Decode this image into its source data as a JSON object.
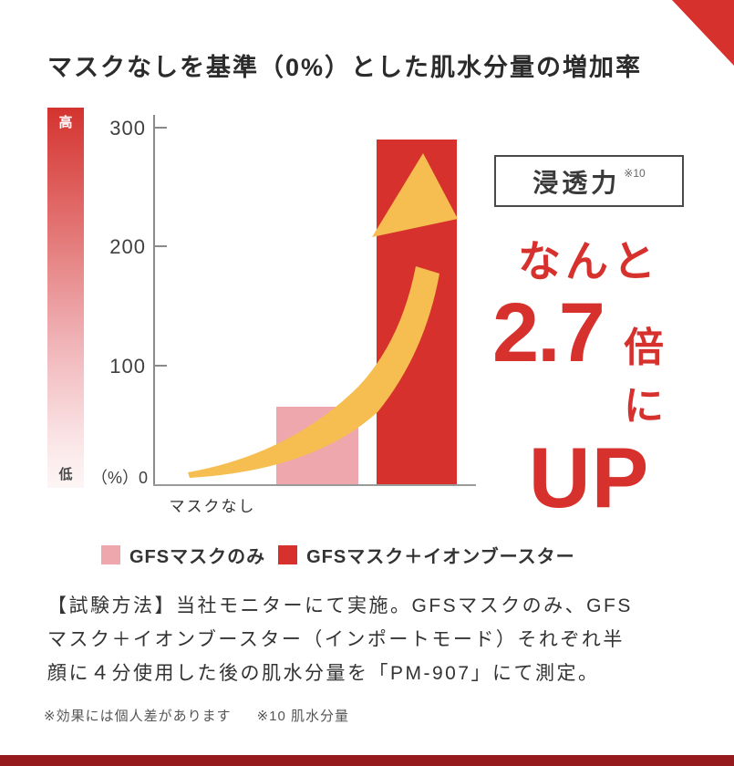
{
  "title": "マスクなしを基準（0%）とした肌水分量の増加率",
  "colors": {
    "accent_red": "#d7312e",
    "bar_pink": "#efa7ae",
    "arrow_gold": "#f6be50",
    "bottom_bar": "#951a1e",
    "text_dark": "#2b2b2b"
  },
  "chart_data": {
    "type": "bar",
    "title": "マスクなしを基準（0%）とした肌水分量の増加率",
    "categories": [
      "マスクなし",
      "GFSマスクのみ",
      "GFSマスク＋イオンブースター"
    ],
    "values": [
      0,
      65,
      290
    ],
    "ylim": [
      0,
      300
    ],
    "yticks": [
      300,
      200,
      100
    ],
    "baseline_label": "（%）0",
    "x_tick_label": "マスクなし",
    "ylabel": "",
    "xlabel": "",
    "grid": false,
    "legend_position": "bottom",
    "scale_high": "高",
    "scale_low": "低",
    "annotation": "golden upward growth arrow from baseline to top of tallest bar",
    "legend": [
      {
        "label": "GFSマスクのみ",
        "color": "#efa7ae"
      },
      {
        "label": "GFSマスク＋イオンブースター",
        "color": "#d7312e"
      }
    ]
  },
  "callout": {
    "badge": "浸透力",
    "badge_note": "※10",
    "lead": "なんと",
    "multiplier": "2.7",
    "multiplier_suffix": "倍に",
    "up": "UP"
  },
  "method": {
    "lines": [
      "【試験方法】当社モニターにて実施。GFSマスクのみ、GFS",
      "マスク＋イオンブースター（インポートモード）それぞれ半",
      "顔に４分使用した後の肌水分量を「PM-907」にて測定。"
    ]
  },
  "footnotes": {
    "disclaimer": "※効果には個人差があります",
    "note10": "※10 肌水分量"
  }
}
